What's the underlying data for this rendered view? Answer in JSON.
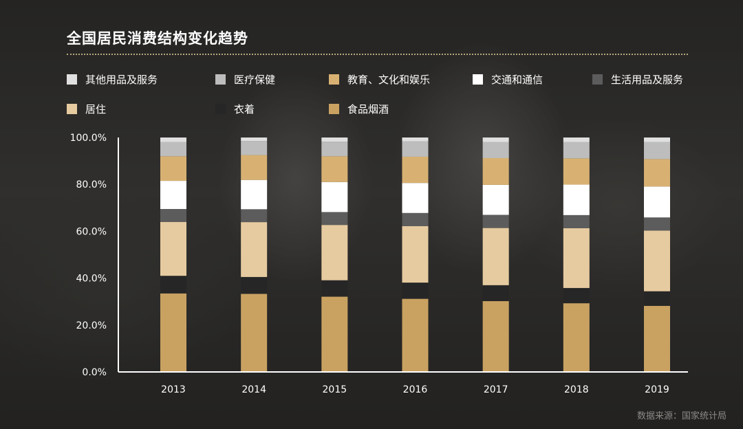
{
  "title": "全国居民消费结构变化趋势",
  "source": "数据来源：国家统计局",
  "colors": {
    "其他用品及服务": "#e0e0e0",
    "医疗保健": "#bdbdbd",
    "教育、文化和娱乐": "#d8b172",
    "交通和通信": "#ffffff",
    "生活用品及服务": "#5c5c5c",
    "居住": "#e6cba0",
    "衣着": "#262626",
    "食品烟酒": "#c9a262"
  },
  "legend": [
    {
      "label": "其他用品及服务",
      "color": "#e0e0e0"
    },
    {
      "label": "医疗保健",
      "color": "#bdbdbd"
    },
    {
      "label": "教育、文化和娱乐",
      "color": "#d8b172"
    },
    {
      "label": "交通和通信",
      "color": "#ffffff"
    },
    {
      "label": "生活用品及服务",
      "color": "#5c5c5c"
    },
    {
      "label": "居住",
      "color": "#e6cba0"
    },
    {
      "label": "衣着",
      "color": "#262626"
    },
    {
      "label": "食品烟酒",
      "color": "#c9a262"
    }
  ],
  "chart_data": {
    "type": "bar",
    "stacked": true,
    "title": "全国居民消费结构变化趋势",
    "categories": [
      "2013",
      "2014",
      "2015",
      "2016",
      "2017",
      "2018",
      "2019"
    ],
    "ylim": [
      0,
      100
    ],
    "yticks": [
      "0.0%",
      "20.0%",
      "40.0%",
      "60.0%",
      "80.0%",
      "100.0%"
    ],
    "grid": false,
    "legend_position": "top",
    "series": [
      {
        "name": "食品烟酒",
        "values": [
          33.5,
          33.3,
          32.1,
          31.2,
          30.2,
          29.3,
          28.2
        ]
      },
      {
        "name": "衣着",
        "values": [
          7.5,
          7.2,
          7.0,
          6.9,
          6.8,
          6.5,
          6.2
        ]
      },
      {
        "name": "居住",
        "values": [
          23.0,
          23.4,
          23.6,
          24.1,
          24.4,
          25.5,
          25.9
        ]
      },
      {
        "name": "生活用品及服务",
        "values": [
          5.5,
          5.5,
          5.5,
          5.6,
          5.6,
          5.6,
          5.6
        ]
      },
      {
        "name": "交通和通信",
        "values": [
          12.0,
          12.5,
          12.8,
          12.8,
          12.8,
          13.0,
          13.2
        ]
      },
      {
        "name": "教育、文化和娱乐",
        "values": [
          10.5,
          10.6,
          11.0,
          11.2,
          11.4,
          11.2,
          11.7
        ]
      },
      {
        "name": "医疗保健",
        "values": [
          6.0,
          6.0,
          6.2,
          6.5,
          6.9,
          7.0,
          7.2
        ]
      },
      {
        "name": "其他用品及服务",
        "values": [
          2.0,
          1.5,
          1.8,
          1.7,
          1.9,
          1.9,
          2.0
        ]
      }
    ]
  }
}
